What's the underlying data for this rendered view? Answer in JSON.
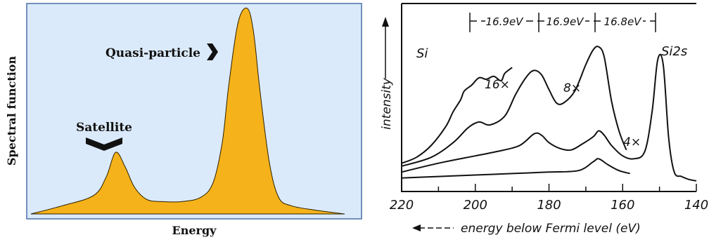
{
  "chart_data": [
    {
      "type": "area",
      "title": "",
      "xlabel": "Energy",
      "ylabel": "Spectral function",
      "background": "#dbeafa",
      "fill": "#f6b21a",
      "annotations": [
        {
          "text": "Satellite",
          "marker": "down-chevron",
          "peak": "small"
        },
        {
          "text": "Quasi-particle",
          "marker": "right-chevron",
          "peak": "large"
        }
      ],
      "x": [
        0,
        0.1,
        0.2,
        0.24,
        0.27,
        0.3,
        0.33,
        0.37,
        0.42,
        0.48,
        0.54,
        0.58,
        0.61,
        0.63,
        0.66,
        0.69,
        0.71,
        0.73,
        0.76,
        0.79,
        0.83,
        0.9,
        1.0
      ],
      "y": [
        0.0,
        0.04,
        0.09,
        0.18,
        0.3,
        0.23,
        0.13,
        0.07,
        0.06,
        0.06,
        0.08,
        0.15,
        0.35,
        0.62,
        0.93,
        1.0,
        0.88,
        0.6,
        0.25,
        0.08,
        0.04,
        0.02,
        0.0
      ]
    },
    {
      "type": "line",
      "title": "",
      "xlabel": "energy below Fermi level (eV)",
      "ylabel": "intensity",
      "xlim": [
        220,
        140
      ],
      "x_ticks": [
        "220",
        "200",
        "180",
        "160",
        "140"
      ],
      "labels": {
        "element": "Si",
        "peak": "Si2s"
      },
      "spacings": [
        "16.9eV",
        "16.9eV",
        "16.8eV"
      ],
      "series": [
        {
          "name": "",
          "label": "16×",
          "x": [
            220,
            216,
            212,
            208,
            206,
            204,
            203,
            201,
            199,
            197,
            195,
            193,
            192,
            190
          ],
          "y": [
            0.13,
            0.17,
            0.25,
            0.38,
            0.48,
            0.56,
            0.62,
            0.66,
            0.71,
            0.7,
            0.72,
            0.69,
            0.74,
            0.78
          ]
        },
        {
          "name": "",
          "label": "8×",
          "x": [
            220,
            212,
            206,
            202,
            199,
            196,
            192,
            189,
            186,
            184,
            182,
            180,
            178,
            176,
            173,
            170,
            168,
            166.5,
            165,
            163,
            161,
            159
          ],
          "y": [
            0.11,
            0.17,
            0.27,
            0.37,
            0.41,
            0.39,
            0.45,
            0.6,
            0.72,
            0.76,
            0.73,
            0.63,
            0.54,
            0.54,
            0.62,
            0.8,
            0.9,
            0.92,
            0.85,
            0.55,
            0.35,
            0.22
          ]
        },
        {
          "name": "",
          "label": "4×",
          "x": [
            220,
            210,
            200,
            194,
            188,
            184,
            182,
            180,
            177,
            174,
            171,
            168,
            166.5,
            165,
            163,
            160,
            157,
            154,
            152,
            150.5,
            149,
            147.5,
            146,
            144,
            142,
            140
          ],
          "y": [
            0.07,
            0.13,
            0.18,
            0.21,
            0.25,
            0.33,
            0.32,
            0.27,
            0.23,
            0.22,
            0.26,
            0.31,
            0.35,
            0.32,
            0.25,
            0.18,
            0.16,
            0.21,
            0.48,
            0.83,
            0.8,
            0.3,
            0.07,
            0.04,
            0.02,
            0.01
          ]
        },
        {
          "name": "",
          "label": "",
          "x": [
            220,
            210,
            200,
            190,
            180,
            172,
            168,
            166.5,
            164,
            161,
            158
          ],
          "y": [
            0.03,
            0.04,
            0.05,
            0.06,
            0.07,
            0.08,
            0.14,
            0.16,
            0.12,
            0.08,
            0.06
          ]
        }
      ]
    }
  ]
}
